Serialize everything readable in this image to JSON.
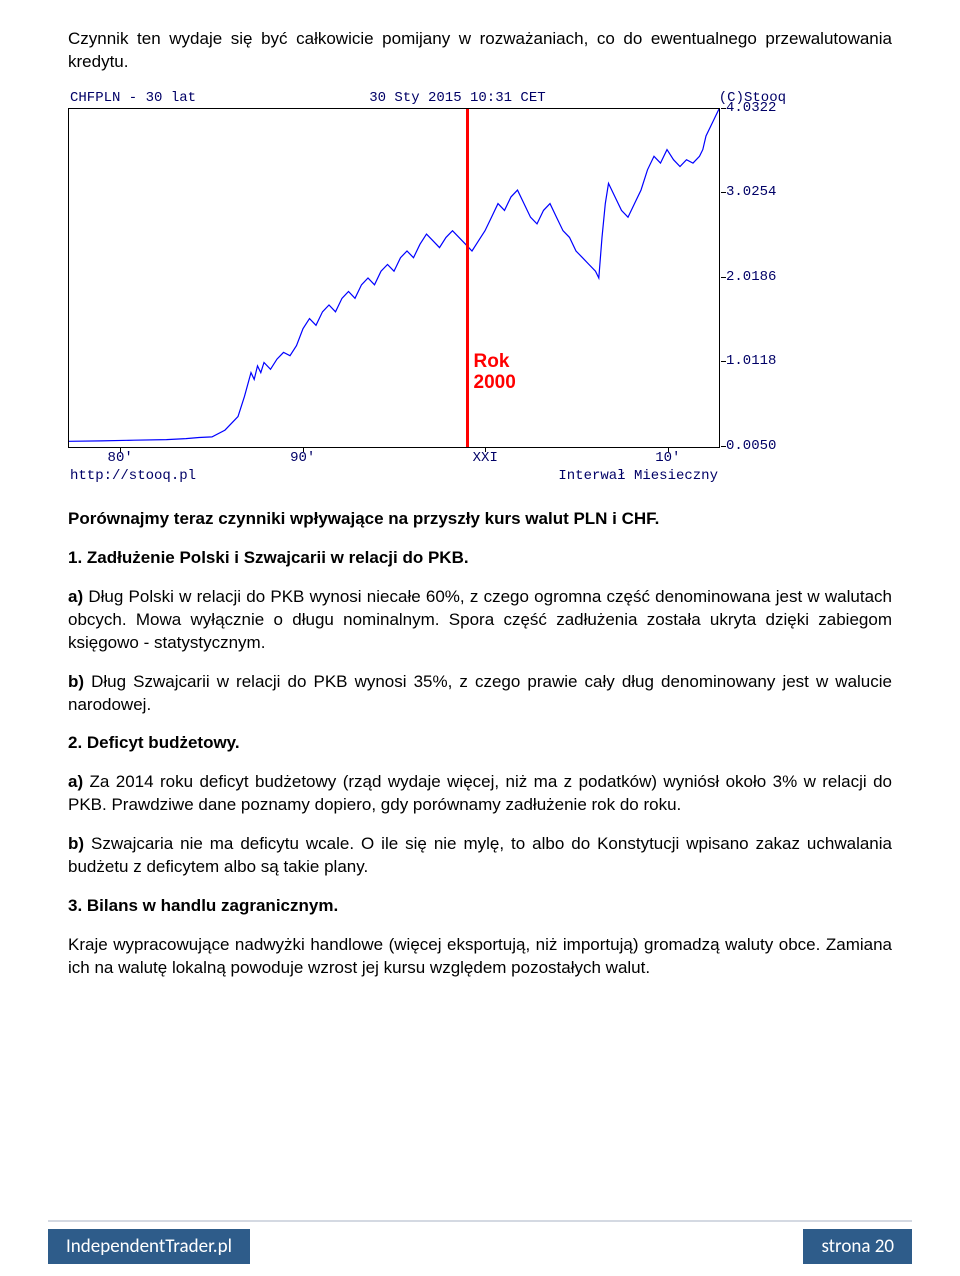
{
  "intro": "Czynnik ten wydaje się być całkowicie pomijany w rozważaniach, co do ewentualnego przewalutowania kredytu.",
  "chart": {
    "header_left": "CHFPLN - 30 lat",
    "header_center": "30 Sty 2015 10:31 CET",
    "header_right": "(C)Stooq",
    "footer_left": "http://stooq.pl",
    "footer_right": "Interwał Miesieczny",
    "ylim": [
      0.005,
      4.0322
    ],
    "ylabels": [
      {
        "v": "4.0322",
        "y": 0.0
      },
      {
        "v": "3.0254",
        "y": 0.25
      },
      {
        "v": "2.0186",
        "y": 0.5
      },
      {
        "v": "1.0118",
        "y": 0.75
      },
      {
        "v": "0.0050",
        "y": 1.0
      }
    ],
    "xlabels": [
      {
        "v": "80'",
        "x": 0.08
      },
      {
        "v": "90'",
        "x": 0.36
      },
      {
        "v": "XXI",
        "x": 0.64
      },
      {
        "v": "10'",
        "x": 0.92
      }
    ],
    "red_line_x": 0.61,
    "red_label": "Rok\n2000",
    "line_color": "#0000ff",
    "red_color": "#ff0000",
    "border_color": "#000000",
    "text_color": "#000066",
    "series": [
      [
        0.0,
        0.017
      ],
      [
        0.05,
        0.018
      ],
      [
        0.1,
        0.02
      ],
      [
        0.15,
        0.022
      ],
      [
        0.18,
        0.025
      ],
      [
        0.2,
        0.028
      ],
      [
        0.22,
        0.03
      ],
      [
        0.24,
        0.05
      ],
      [
        0.25,
        0.07
      ],
      [
        0.26,
        0.09
      ],
      [
        0.27,
        0.15
      ],
      [
        0.28,
        0.22
      ],
      [
        0.285,
        0.2
      ],
      [
        0.29,
        0.24
      ],
      [
        0.295,
        0.22
      ],
      [
        0.3,
        0.25
      ],
      [
        0.31,
        0.23
      ],
      [
        0.32,
        0.26
      ],
      [
        0.33,
        0.28
      ],
      [
        0.34,
        0.27
      ],
      [
        0.35,
        0.3
      ],
      [
        0.36,
        0.35
      ],
      [
        0.37,
        0.38
      ],
      [
        0.38,
        0.36
      ],
      [
        0.39,
        0.4
      ],
      [
        0.4,
        0.42
      ],
      [
        0.41,
        0.4
      ],
      [
        0.42,
        0.44
      ],
      [
        0.43,
        0.46
      ],
      [
        0.44,
        0.44
      ],
      [
        0.45,
        0.48
      ],
      [
        0.46,
        0.5
      ],
      [
        0.47,
        0.48
      ],
      [
        0.48,
        0.52
      ],
      [
        0.49,
        0.54
      ],
      [
        0.5,
        0.52
      ],
      [
        0.51,
        0.56
      ],
      [
        0.52,
        0.58
      ],
      [
        0.53,
        0.56
      ],
      [
        0.54,
        0.6
      ],
      [
        0.55,
        0.63
      ],
      [
        0.56,
        0.61
      ],
      [
        0.57,
        0.59
      ],
      [
        0.58,
        0.62
      ],
      [
        0.59,
        0.64
      ],
      [
        0.6,
        0.62
      ],
      [
        0.61,
        0.6
      ],
      [
        0.62,
        0.58
      ],
      [
        0.63,
        0.61
      ],
      [
        0.64,
        0.64
      ],
      [
        0.65,
        0.68
      ],
      [
        0.66,
        0.72
      ],
      [
        0.67,
        0.7
      ],
      [
        0.68,
        0.74
      ],
      [
        0.69,
        0.76
      ],
      [
        0.7,
        0.72
      ],
      [
        0.71,
        0.68
      ],
      [
        0.72,
        0.66
      ],
      [
        0.73,
        0.7
      ],
      [
        0.74,
        0.72
      ],
      [
        0.75,
        0.68
      ],
      [
        0.76,
        0.64
      ],
      [
        0.77,
        0.62
      ],
      [
        0.78,
        0.58
      ],
      [
        0.79,
        0.56
      ],
      [
        0.8,
        0.54
      ],
      [
        0.81,
        0.52
      ],
      [
        0.815,
        0.5
      ],
      [
        0.82,
        0.62
      ],
      [
        0.825,
        0.72
      ],
      [
        0.83,
        0.78
      ],
      [
        0.84,
        0.74
      ],
      [
        0.85,
        0.7
      ],
      [
        0.86,
        0.68
      ],
      [
        0.87,
        0.72
      ],
      [
        0.88,
        0.76
      ],
      [
        0.89,
        0.82
      ],
      [
        0.9,
        0.86
      ],
      [
        0.91,
        0.84
      ],
      [
        0.92,
        0.88
      ],
      [
        0.93,
        0.85
      ],
      [
        0.94,
        0.83
      ],
      [
        0.95,
        0.85
      ],
      [
        0.96,
        0.84
      ],
      [
        0.97,
        0.86
      ],
      [
        0.975,
        0.88
      ],
      [
        0.98,
        0.92
      ],
      [
        0.99,
        0.96
      ],
      [
        1.0,
        1.0
      ]
    ]
  },
  "p1": "Porównajmy teraz czynniki wpływające na przyszły kurs walut PLN i CHF.",
  "h1": "1. Zadłużenie Polski i Szwajcarii w relacji do PKB.",
  "p2a": "a)",
  "p2": " Dług Polski w relacji do PKB wynosi niecałe 60%, z czego ogromna część denominowana jest w walutach obcych. Mowa wyłącznie o długu nominalnym. Spora część zadłużenia została ukryta dzięki zabiegom księgowo - statystycznym.",
  "p3a": "b)",
  "p3": " Dług Szwajcarii w relacji do PKB wynosi 35%, z czego prawie cały dług denominowany jest w walucie narodowej.",
  "h2": "2. Deficyt budżetowy.",
  "p4a": "a)",
  "p4": " Za 2014 roku deficyt budżetowy (rząd wydaje więcej, niż ma z podatków) wyniósł około 3% w relacji do PKB. Prawdziwe dane poznamy dopiero, gdy porównamy zadłużenie rok do roku.",
  "p5a": "b)",
  "p5": " Szwajcaria nie ma deficytu wcale. O ile się nie mylę, to albo do Konstytucji wpisano zakaz uchwalania budżetu z deficytem albo są takie plany.",
  "h3": "3. Bilans w handlu zagranicznym.",
  "p6": "Kraje wypracowujące nadwyżki handlowe (więcej eksportują, niż importują) gromadzą waluty obce. Zamiana ich na walutę lokalną powoduje wzrost jej kursu względem pozostałych walut.",
  "footer_site": "IndependentTrader.pl",
  "footer_page": "strona 20"
}
